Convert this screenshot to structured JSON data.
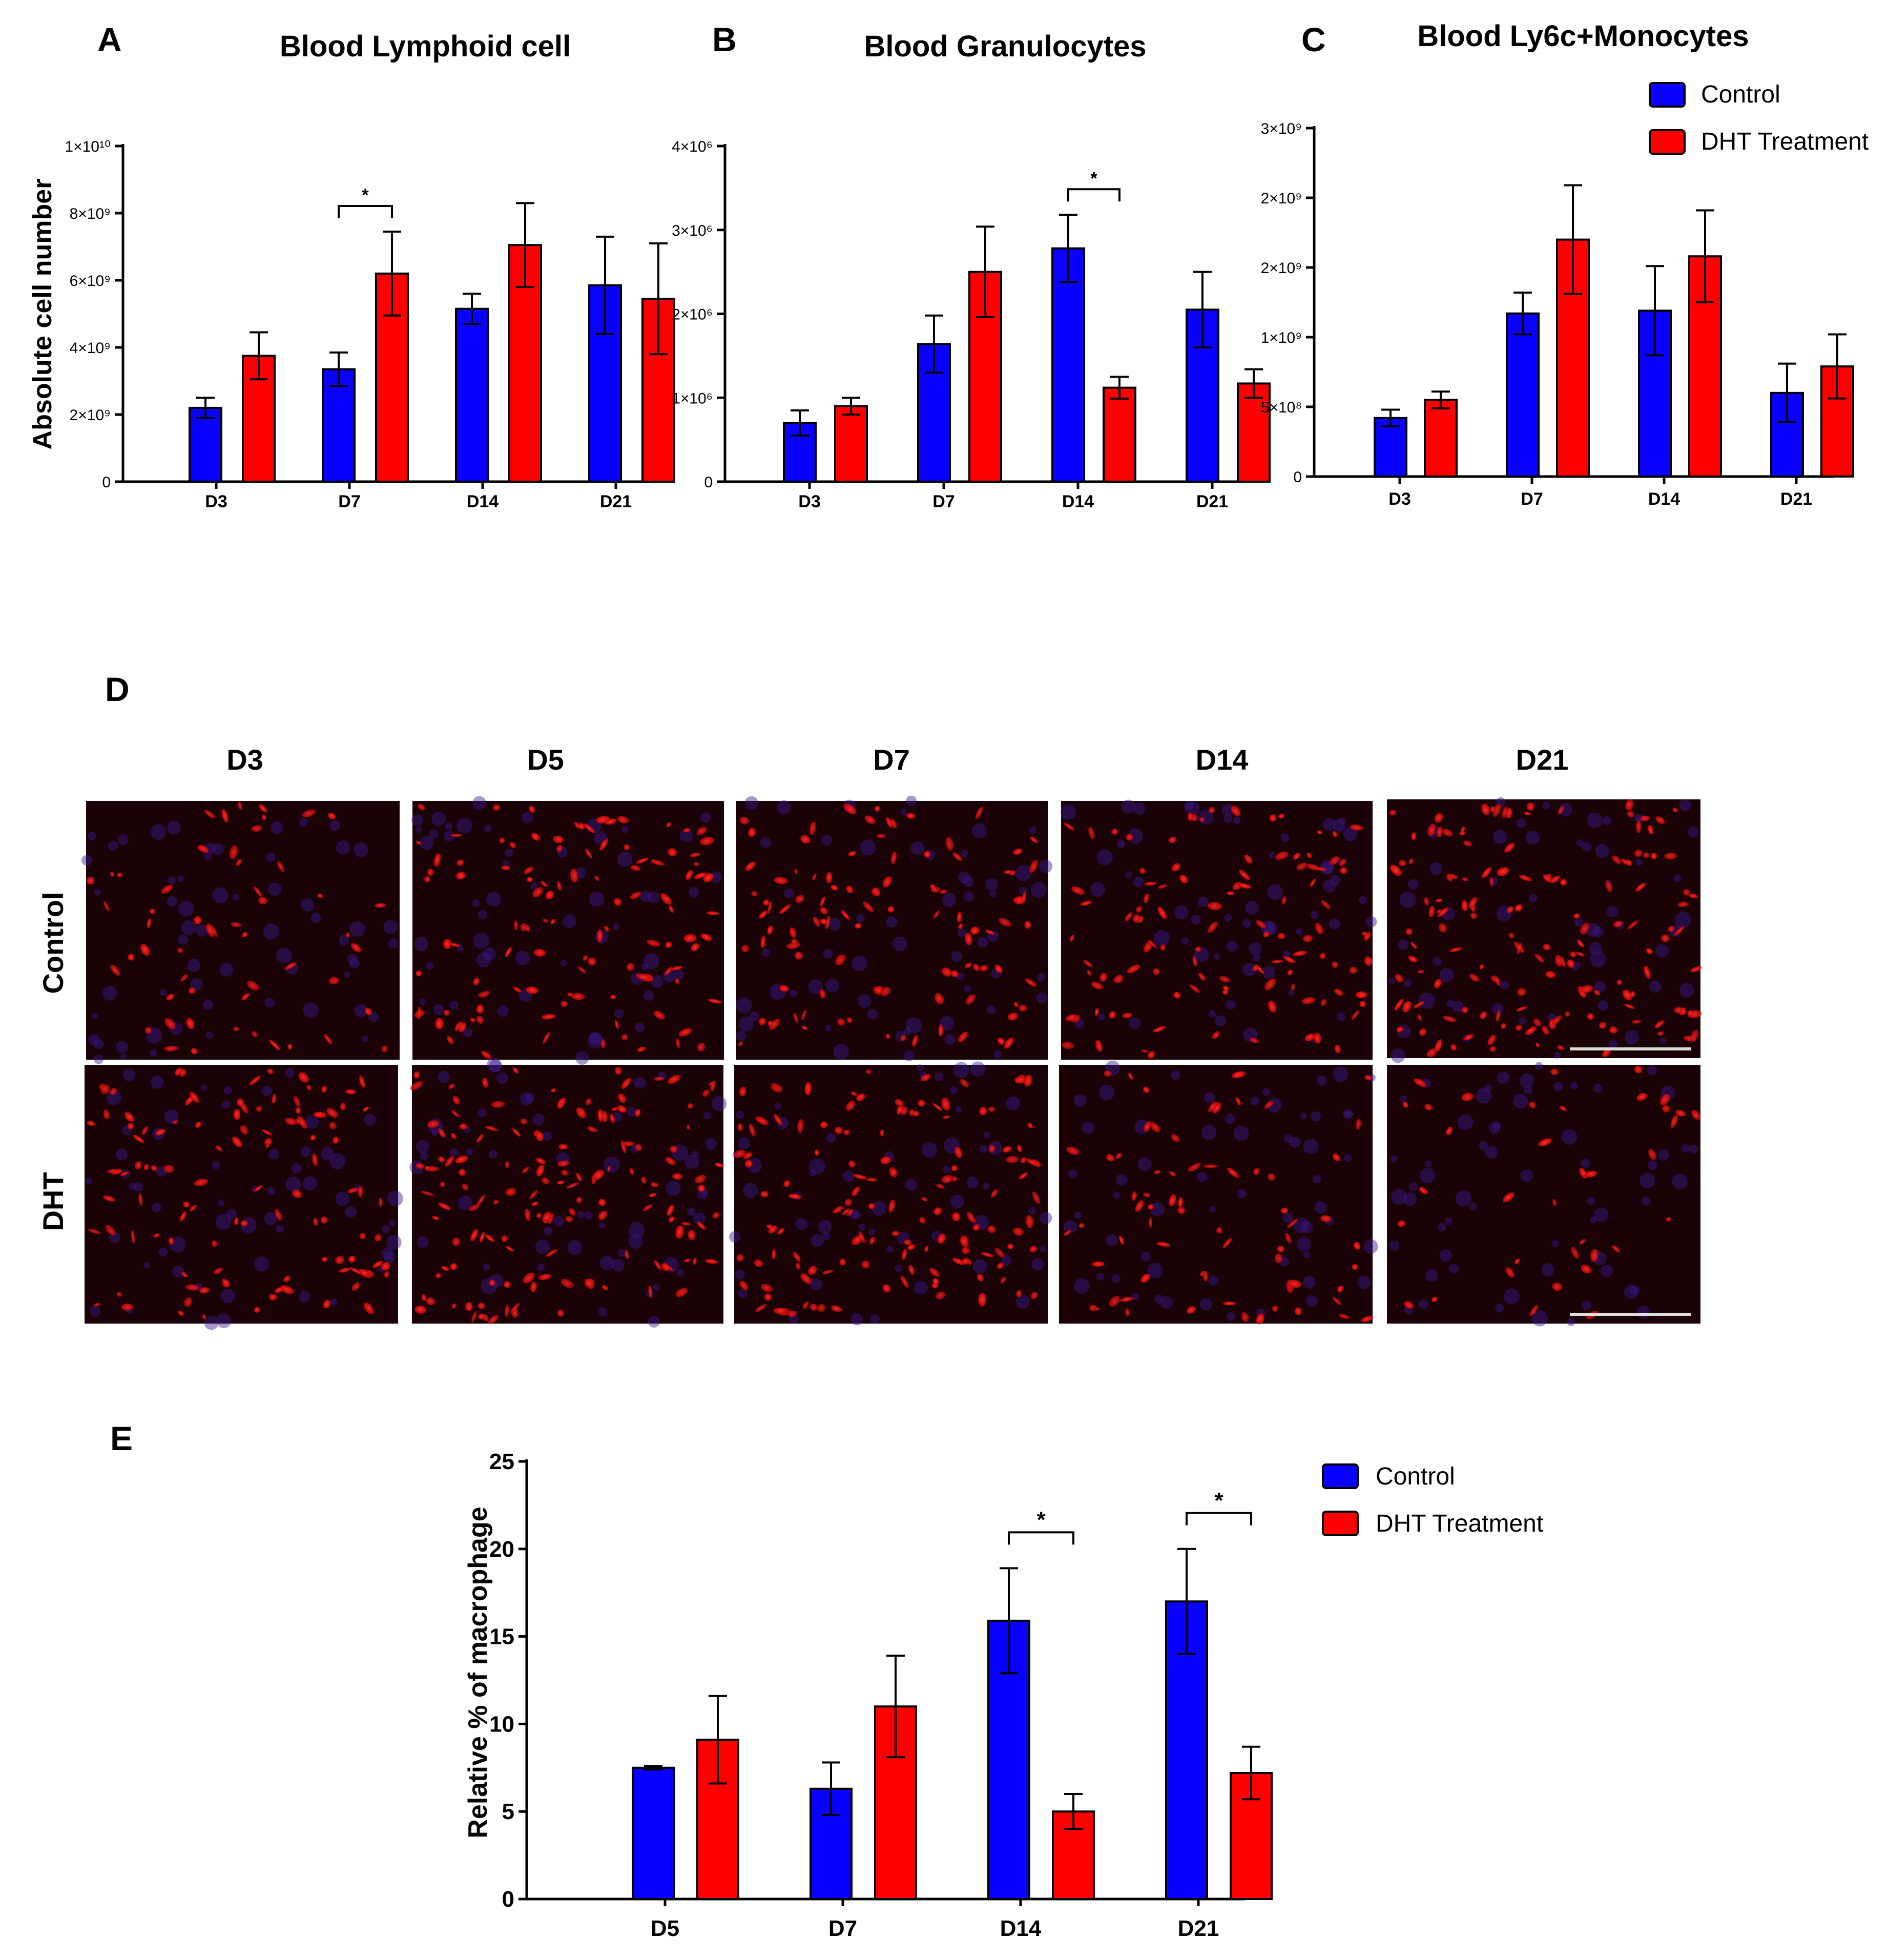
{
  "colors": {
    "control": "#0a00ff",
    "dht": "#ff0000"
  },
  "legend": {
    "control": "Control",
    "dht": "DHT Treatment"
  },
  "panel_d": {
    "letter": "D",
    "columns": [
      "D3",
      "D5",
      "D7",
      "D14",
      "D21"
    ],
    "rows": [
      "Control",
      "DHT"
    ]
  },
  "chart_data": [
    {
      "id": "A",
      "letter": "A",
      "type": "bar",
      "title": "Blood Lymphoid cell",
      "ylabel": "Absolute cell number",
      "xlabel": "",
      "categories": [
        "D3",
        "D7",
        "D14",
        "D21"
      ],
      "ylim": [
        0,
        10000000000
      ],
      "yticks": [
        {
          "v": 0,
          "label": "0"
        },
        {
          "v": 2000000000,
          "label": "2×10⁹"
        },
        {
          "v": 4000000000,
          "label": "4×10⁹"
        },
        {
          "v": 6000000000,
          "label": "6×10⁹"
        },
        {
          "v": 8000000000,
          "label": "8×10⁹"
        },
        {
          "v": 10000000000,
          "label": "1×10¹⁰"
        }
      ],
      "series": [
        {
          "name": "Control",
          "values": [
            2200000000,
            3350000000,
            5150000000,
            5850000000
          ],
          "errors": [
            300000000,
            500000000,
            450000000,
            1450000000
          ]
        },
        {
          "name": "DHT Treatment",
          "values": [
            3750000000,
            6200000000,
            7050000000,
            5450000000
          ],
          "errors": [
            700000000,
            1250000000,
            1250000000,
            1650000000
          ]
        }
      ],
      "significance": [
        {
          "category": "D7",
          "label": "*"
        }
      ]
    },
    {
      "id": "B",
      "letter": "B",
      "type": "bar",
      "title": "Blood Granulocytes",
      "ylabel": "",
      "xlabel": "",
      "categories": [
        "D3",
        "D7",
        "D14",
        "D21"
      ],
      "ylim": [
        0,
        4000000
      ],
      "yticks": [
        {
          "v": 0,
          "label": "0"
        },
        {
          "v": 1000000,
          "label": "1×10⁶"
        },
        {
          "v": 2000000,
          "label": "2×10⁶"
        },
        {
          "v": 3000000,
          "label": "3×10⁶"
        },
        {
          "v": 4000000,
          "label": "4×10⁶"
        }
      ],
      "series": [
        {
          "name": "Control",
          "values": [
            700000,
            1640000,
            2780000,
            2050000
          ],
          "errors": [
            150000,
            340000,
            400000,
            450000
          ]
        },
        {
          "name": "DHT Treatment",
          "values": [
            900000,
            2500000,
            1120000,
            1170000
          ],
          "errors": [
            100000,
            540000,
            130000,
            170000
          ]
        }
      ],
      "significance": [
        {
          "category": "D14",
          "label": "*"
        }
      ]
    },
    {
      "id": "C",
      "letter": "C",
      "type": "bar",
      "title": "Blood Ly6c+Monocytes",
      "ylabel": "",
      "xlabel": "",
      "categories": [
        "D3",
        "D7",
        "D14",
        "D21"
      ],
      "ylim": [
        0,
        2500000000
      ],
      "yticks": [
        {
          "v": 0,
          "label": "0"
        },
        {
          "v": 500000000,
          "label": "5×10⁸"
        },
        {
          "v": 1000000000,
          "label": "1×10⁹"
        },
        {
          "v": 1500000000,
          "label": "2×10⁹"
        },
        {
          "v": 2000000000,
          "label": "2×10⁹"
        },
        {
          "v": 2500000000,
          "label": "3×10⁹"
        }
      ],
      "series": [
        {
          "name": "Control",
          "values": [
            420000000,
            1170000000,
            1190000000,
            600000000
          ],
          "errors": [
            60000000,
            150000000,
            320000000,
            210000000
          ]
        },
        {
          "name": "DHT Treatment",
          "values": [
            550000000,
            1700000000,
            1580000000,
            790000000
          ],
          "errors": [
            60000000,
            390000000,
            330000000,
            230000000
          ]
        }
      ],
      "significance": []
    },
    {
      "id": "E",
      "letter": "E",
      "type": "bar",
      "title": "",
      "ylabel": "Relative % of macrophage",
      "xlabel": "",
      "categories": [
        "D5",
        "D7",
        "D14",
        "D21"
      ],
      "ylim": [
        0,
        25
      ],
      "yticks": [
        {
          "v": 0,
          "label": "0"
        },
        {
          "v": 5,
          "label": "5"
        },
        {
          "v": 10,
          "label": "10"
        },
        {
          "v": 15,
          "label": "15"
        },
        {
          "v": 20,
          "label": "20"
        },
        {
          "v": 25,
          "label": "25"
        }
      ],
      "series": [
        {
          "name": "Control",
          "values": [
            7.5,
            6.3,
            15.9,
            17.0
          ],
          "errors": [
            0.1,
            1.5,
            3.0,
            3.0
          ]
        },
        {
          "name": "DHT Treatment",
          "values": [
            9.1,
            11.0,
            5.0,
            7.2
          ],
          "errors": [
            2.5,
            2.9,
            1.0,
            1.5
          ]
        }
      ],
      "significance": [
        {
          "category": "D14",
          "label": "*"
        },
        {
          "category": "D21",
          "label": "*"
        }
      ]
    }
  ]
}
